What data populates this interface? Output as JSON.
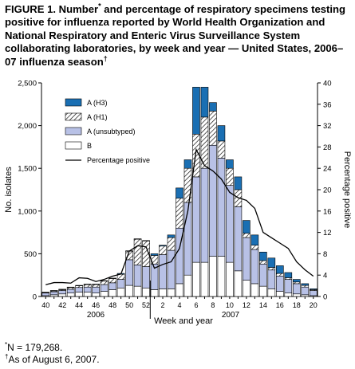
{
  "title": {
    "prefix": "FIGURE 1. Number",
    "marker": "*",
    "main": " and percentage of respiratory specimens testing positive for influenza reported by World Health Organization and National Respiratory and Enteric Virus Surveillance System collaborating laboratories, by week and year — United States, 2006–07 influenza season",
    "suffix_marker": "†"
  },
  "footnotes": [
    {
      "marker": "*",
      "text": "N = 179,268."
    },
    {
      "marker": "†",
      "text": "As of August 6, 2007."
    }
  ],
  "colors": {
    "a_h3": "#1a6fb3",
    "a_unsubtyped": "#b8c1e6",
    "b": "#ffffff",
    "line": "#000000"
  },
  "chart_data": {
    "type": "bar",
    "stacked": true,
    "xlabel": "Week and year",
    "ylabel": "No. isolates",
    "y2label": "Percentage positive",
    "ylim": [
      0,
      2500
    ],
    "y2lim": [
      0,
      40
    ],
    "yticks": [
      "0",
      "500",
      "1,000",
      "1,500",
      "2,000",
      "2,500"
    ],
    "y2ticks": [
      "0",
      "4",
      "8",
      "12",
      "16",
      "20",
      "24",
      "28",
      "32",
      "36",
      "40"
    ],
    "year_labels": [
      "2006",
      "2007"
    ],
    "tick_labels": [
      "40",
      "42",
      "44",
      "46",
      "48",
      "50",
      "52",
      "2",
      "4",
      "6",
      "8",
      "10",
      "12",
      "14",
      "16",
      "18",
      "20"
    ],
    "categories": [
      40,
      41,
      42,
      43,
      44,
      45,
      46,
      47,
      48,
      49,
      50,
      51,
      52,
      1,
      2,
      3,
      4,
      5,
      6,
      7,
      8,
      9,
      10,
      11,
      12,
      13,
      14,
      15,
      16,
      17,
      18,
      19,
      20
    ],
    "legend": [
      "A (H3)",
      "A (H1)",
      "A (unsubtyped)",
      "B",
      "Percentage positive"
    ],
    "series": [
      {
        "name": "B",
        "values": [
          10,
          20,
          30,
          40,
          50,
          50,
          40,
          60,
          80,
          100,
          130,
          120,
          100,
          80,
          90,
          90,
          150,
          250,
          400,
          400,
          470,
          470,
          400,
          300,
          190,
          150,
          120,
          90,
          60,
          40,
          30,
          20,
          10
        ]
      },
      {
        "name": "A (unsubtyped)",
        "values": [
          30,
          35,
          40,
          45,
          55,
          60,
          70,
          80,
          80,
          100,
          300,
          250,
          250,
          300,
          400,
          450,
          650,
          850,
          1000,
          1100,
          1300,
          1150,
          900,
          750,
          500,
          400,
          260,
          220,
          180,
          160,
          120,
          90,
          60
        ]
      },
      {
        "name": "A (H1)",
        "values": [
          5,
          10,
          10,
          20,
          20,
          30,
          30,
          40,
          50,
          60,
          100,
          300,
          300,
          100,
          100,
          150,
          350,
          400,
          500,
          600,
          400,
          200,
          200,
          200,
          50,
          50,
          40,
          30,
          30,
          20,
          20,
          20,
          10
        ]
      },
      {
        "name": "A (H3)",
        "values": [
          5,
          5,
          5,
          5,
          5,
          5,
          5,
          5,
          5,
          10,
          5,
          5,
          5,
          20,
          10,
          30,
          120,
          100,
          550,
          350,
          100,
          180,
          100,
          150,
          150,
          120,
          100,
          110,
          90,
          60,
          30,
          20,
          10
        ]
      },
      {
        "name": "Percentage positive",
        "values": [
          2.2,
          2.6,
          2.6,
          2.5,
          3.5,
          3.4,
          2.8,
          3.2,
          3.8,
          4.2,
          8.5,
          9.5,
          9.3,
          5.3,
          6.0,
          6.5,
          9.0,
          16.0,
          27.5,
          24.5,
          23.5,
          22.0,
          19.5,
          18.5,
          18.0,
          16.5,
          12.0,
          11.0,
          10.0,
          9.0,
          6.5,
          5.0,
          3.8
        ]
      }
    ]
  }
}
